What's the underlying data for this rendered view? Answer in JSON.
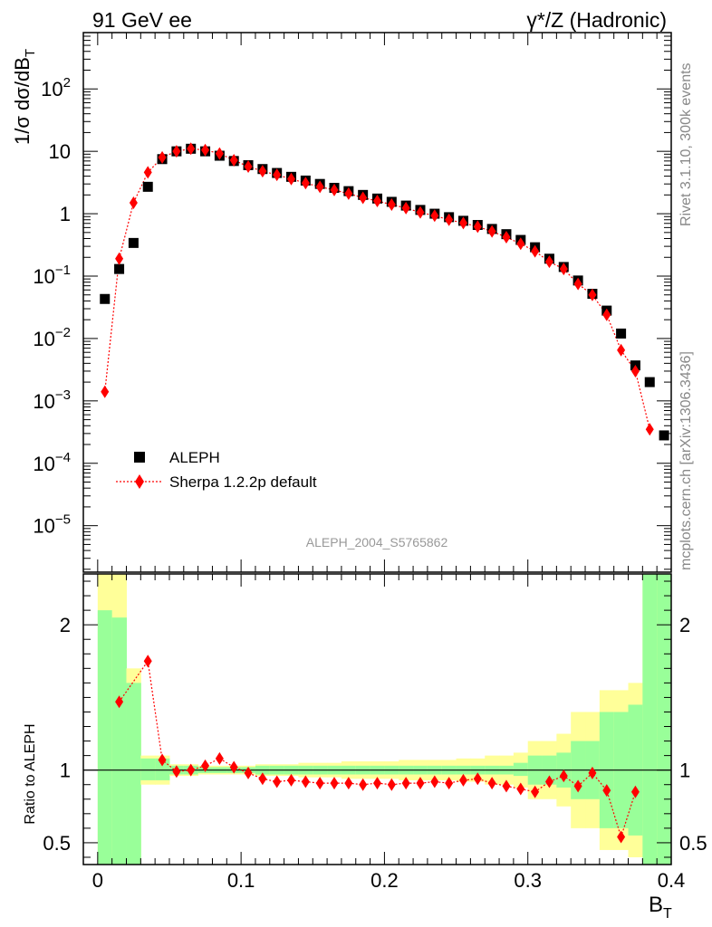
{
  "header": {
    "left": "91 GeV ee",
    "right": "γ*/Z (Hadronic)"
  },
  "side_labels": {
    "rivet": "Rivet 3.1.10,  300k events",
    "mcplots": "mcplots.cern.ch [arXiv:1306.3436]"
  },
  "analysis_tag": "ALEPH_2004_S5765862",
  "chart_data": [
    {
      "type": "scatter",
      "title": "",
      "ylabel": "1/σ  dσ/dB_T",
      "xlabel": "B_T",
      "yscale": "log",
      "xlim": [
        -0.01,
        0.4
      ],
      "ylim": [
        1.8e-06,
        800
      ],
      "y_ticks": [
        {
          "value": 100,
          "label": "10",
          "sup": "2"
        },
        {
          "value": 10,
          "label": "10",
          "sup": ""
        },
        {
          "value": 1,
          "label": "1",
          "sup": ""
        },
        {
          "value": 0.1,
          "label": "10",
          "sup": "−1"
        },
        {
          "value": 0.01,
          "label": "10",
          "sup": "−2"
        },
        {
          "value": 0.001,
          "label": "10",
          "sup": "−3"
        },
        {
          "value": 0.0001,
          "label": "10",
          "sup": "−4"
        },
        {
          "value": 1e-05,
          "label": "10",
          "sup": "−5"
        }
      ],
      "series": [
        {
          "name": "ALEPH",
          "marker": "square",
          "color": "#000000",
          "x": [
            0.005,
            0.015,
            0.025,
            0.035,
            0.045,
            0.055,
            0.065,
            0.075,
            0.085,
            0.095,
            0.105,
            0.115,
            0.125,
            0.135,
            0.145,
            0.155,
            0.165,
            0.175,
            0.185,
            0.195,
            0.205,
            0.215,
            0.225,
            0.235,
            0.245,
            0.255,
            0.265,
            0.275,
            0.285,
            0.295,
            0.305,
            0.315,
            0.325,
            0.335,
            0.345,
            0.355,
            0.365,
            0.375,
            0.385,
            0.395
          ],
          "y": [
            0.043,
            0.13,
            0.34,
            2.7,
            7.5,
            10,
            11,
            10,
            8.5,
            7,
            6,
            5.2,
            4.5,
            3.9,
            3.4,
            3.0,
            2.6,
            2.3,
            2.0,
            1.75,
            1.55,
            1.35,
            1.15,
            1.0,
            0.88,
            0.77,
            0.66,
            0.57,
            0.47,
            0.38,
            0.29,
            0.19,
            0.14,
            0.085,
            0.052,
            0.028,
            0.012,
            0.0037,
            0.002,
            0.00028
          ]
        },
        {
          "name": "Sherpa 1.2.2p default",
          "marker": "diamond",
          "color": "#ff0000",
          "x": [
            0.005,
            0.015,
            0.025,
            0.035,
            0.045,
            0.055,
            0.065,
            0.075,
            0.085,
            0.095,
            0.105,
            0.115,
            0.125,
            0.135,
            0.145,
            0.155,
            0.165,
            0.175,
            0.185,
            0.195,
            0.205,
            0.215,
            0.225,
            0.235,
            0.245,
            0.255,
            0.265,
            0.275,
            0.285,
            0.295,
            0.305,
            0.315,
            0.325,
            0.335,
            0.345,
            0.355,
            0.365,
            0.375,
            0.385
          ],
          "y": [
            0.0014,
            0.19,
            1.5,
            4.6,
            8.0,
            10,
            11,
            10.5,
            9.2,
            7.2,
            5.7,
            4.8,
            4.2,
            3.6,
            3.1,
            2.7,
            2.4,
            2.1,
            1.8,
            1.6,
            1.4,
            1.23,
            1.05,
            0.93,
            0.8,
            0.71,
            0.62,
            0.52,
            0.42,
            0.33,
            0.25,
            0.17,
            0.13,
            0.075,
            0.05,
            0.024,
            0.0065,
            0.003,
            0.00035
          ]
        }
      ],
      "legend": "lower-left"
    },
    {
      "type": "line",
      "ylabel": "Ratio to ALEPH",
      "xlabel": "B_T",
      "xlim": [
        -0.01,
        0.4
      ],
      "ylim": [
        0.35,
        2.35
      ],
      "x_ticks": [
        0,
        0.1,
        0.2,
        0.3,
        0.4
      ],
      "x_tick_labels": [
        "0",
        "0.1",
        "0.2",
        "0.3",
        "0.4"
      ],
      "y_ticks": [
        0.5,
        1,
        2
      ],
      "y_tick_labels": [
        "0.5",
        "1",
        "2"
      ],
      "bands": {
        "edges": [
          0,
          0.01,
          0.02,
          0.03,
          0.04,
          0.05,
          0.06,
          0.07,
          0.08,
          0.09,
          0.1,
          0.11,
          0.12,
          0.13,
          0.14,
          0.15,
          0.16,
          0.17,
          0.18,
          0.19,
          0.2,
          0.21,
          0.22,
          0.23,
          0.24,
          0.25,
          0.26,
          0.27,
          0.28,
          0.29,
          0.3,
          0.31,
          0.32,
          0.33,
          0.34,
          0.35,
          0.36,
          0.37,
          0.38,
          0.39,
          0.4
        ],
        "inner_lo": [
          0.2,
          0.2,
          0.2,
          0.93,
          0.93,
          0.97,
          0.97,
          0.98,
          0.98,
          0.98,
          0.98,
          0.97,
          0.97,
          0.97,
          0.97,
          0.97,
          0.97,
          0.97,
          0.97,
          0.97,
          0.97,
          0.97,
          0.97,
          0.97,
          0.97,
          0.97,
          0.97,
          0.97,
          0.97,
          0.96,
          0.9,
          0.9,
          0.88,
          0.8,
          0.8,
          0.6,
          0.6,
          0.55,
          0.3,
          0.3
        ],
        "inner_hi": [
          2.1,
          2.05,
          1.6,
          1.08,
          1.08,
          1.03,
          1.03,
          1.02,
          1.02,
          1.02,
          1.02,
          1.03,
          1.03,
          1.03,
          1.03,
          1.03,
          1.03,
          1.03,
          1.03,
          1.03,
          1.03,
          1.03,
          1.03,
          1.03,
          1.03,
          1.03,
          1.03,
          1.03,
          1.03,
          1.05,
          1.1,
          1.1,
          1.12,
          1.2,
          1.2,
          1.4,
          1.4,
          1.45,
          2.5,
          2.5
        ],
        "outer_lo": [
          0.2,
          0.2,
          0.2,
          0.9,
          0.9,
          0.96,
          0.96,
          0.97,
          0.97,
          0.97,
          0.97,
          0.96,
          0.96,
          0.96,
          0.95,
          0.95,
          0.95,
          0.94,
          0.94,
          0.94,
          0.94,
          0.93,
          0.93,
          0.93,
          0.93,
          0.92,
          0.92,
          0.9,
          0.9,
          0.88,
          0.8,
          0.8,
          0.75,
          0.6,
          0.6,
          0.45,
          0.45,
          0.4,
          0.2,
          0.2
        ],
        "outer_hi": [
          2.5,
          2.5,
          1.7,
          1.1,
          1.1,
          1.04,
          1.04,
          1.03,
          1.03,
          1.03,
          1.03,
          1.04,
          1.04,
          1.04,
          1.05,
          1.05,
          1.05,
          1.06,
          1.06,
          1.06,
          1.06,
          1.07,
          1.07,
          1.07,
          1.07,
          1.08,
          1.08,
          1.1,
          1.1,
          1.12,
          1.2,
          1.2,
          1.25,
          1.4,
          1.4,
          1.55,
          1.55,
          1.6,
          3,
          3
        ]
      },
      "series": [
        {
          "name": "Sherpa 1.2.2p default / ALEPH",
          "color": "#ff0000",
          "x": [
            0.015,
            0.035,
            0.045,
            0.055,
            0.065,
            0.075,
            0.085,
            0.095,
            0.105,
            0.115,
            0.125,
            0.135,
            0.145,
            0.155,
            0.165,
            0.175,
            0.185,
            0.195,
            0.205,
            0.215,
            0.225,
            0.235,
            0.245,
            0.255,
            0.265,
            0.275,
            0.285,
            0.295,
            0.305,
            0.315,
            0.325,
            0.335,
            0.345,
            0.355,
            0.365,
            0.375
          ],
          "y": [
            1.47,
            1.75,
            1.07,
            0.99,
            1.0,
            1.03,
            1.08,
            1.02,
            0.98,
            0.94,
            0.92,
            0.93,
            0.92,
            0.91,
            0.91,
            0.91,
            0.9,
            0.91,
            0.9,
            0.91,
            0.91,
            0.92,
            0.91,
            0.93,
            0.94,
            0.91,
            0.89,
            0.87,
            0.85,
            0.92,
            0.96,
            0.89,
            0.98,
            0.86,
            0.54,
            0.85
          ]
        }
      ],
      "reference_line": 1
    }
  ]
}
